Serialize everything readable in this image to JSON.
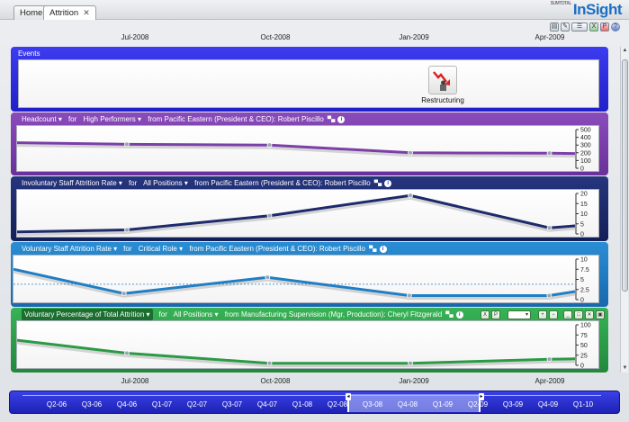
{
  "tabs": [
    {
      "label": "Home",
      "closable": false
    },
    {
      "label": "Attrition",
      "closable": true
    }
  ],
  "logo": {
    "prefix": "SUMTOTAL",
    "text": "InSight"
  },
  "toolbar_icons": [
    "chart-icon",
    "edit-icon",
    "layout-icon",
    "excel-icon",
    "pdf-icon",
    "help-icon"
  ],
  "time_axis": {
    "labels": [
      "Jul-2008",
      "Oct-2008",
      "Jan-2009",
      "Apr-2009"
    ]
  },
  "events": {
    "title": "Events",
    "items": [
      {
        "label": "Restructuring",
        "icon": "restructuring-icon"
      }
    ]
  },
  "panels": [
    {
      "id": "headcount",
      "metric": "Headcount",
      "for": "for",
      "filter": "High Performers",
      "from_text": "from Pacific Eastern (President & CEO): Robert Piscillo",
      "color": "#7b3fa8",
      "ylim": [
        0,
        500
      ],
      "yticks": [
        "500",
        "400",
        "300",
        "200",
        "100",
        "0"
      ]
    },
    {
      "id": "involuntary",
      "metric": "Involuntary Staff Attrition Rate",
      "for": "for",
      "filter": "All Positions",
      "from_text": "from Pacific Eastern (President & CEO): Robert Piscillo",
      "color": "#1d2a6b",
      "ylim": [
        0,
        20
      ],
      "yticks": [
        "20",
        "15",
        "10",
        "5",
        "0"
      ]
    },
    {
      "id": "voluntary",
      "metric": "Voluntary Staff Attrition Rate",
      "for": "for",
      "filter": "Critical Role",
      "from_text": "from Pacific Eastern (President & CEO): Robert Piscillo",
      "color": "#1f7ec4",
      "ylim": [
        0,
        10
      ],
      "yticks": [
        "10",
        "7.5",
        "5",
        "2.5",
        "0"
      ]
    },
    {
      "id": "volpct",
      "metric": "Voluntary Percentage of Total Attrition",
      "for": "for",
      "filter": "All Positions",
      "from_text": "from Manufacturing Supervision (Mgr, Production): Cheryl Fitzgerald",
      "color": "#2a9a45",
      "ylim": [
        0,
        100
      ],
      "yticks": [
        "100",
        "75",
        "50",
        "25",
        "0"
      ]
    }
  ],
  "chart_data": [
    {
      "type": "line",
      "title": "Headcount",
      "x": [
        "May-2008",
        "Jul-2008",
        "Oct-2008",
        "Jan-2009",
        "Apr-2009",
        "May-2009"
      ],
      "values": [
        330,
        310,
        300,
        200,
        195,
        190
      ],
      "ylim": [
        0,
        500
      ]
    },
    {
      "type": "line",
      "title": "Involuntary Staff Attrition Rate",
      "x": [
        "May-2008",
        "Jul-2008",
        "Oct-2008",
        "Jan-2009",
        "Apr-2009",
        "May-2009"
      ],
      "values": [
        1,
        2,
        9,
        19,
        3,
        4
      ],
      "ylim": [
        0,
        20
      ]
    },
    {
      "type": "line",
      "title": "Voluntary Staff Attrition Rate",
      "x": [
        "May-2008",
        "Jul-2008",
        "Oct-2008",
        "Jan-2009",
        "Apr-2009",
        "May-2009"
      ],
      "values": [
        7.5,
        1.5,
        5.5,
        1,
        1,
        2
      ],
      "ylim": [
        0,
        10
      ]
    },
    {
      "type": "line",
      "title": "Voluntary Percentage of Total Attrition",
      "x": [
        "May-2008",
        "Jul-2008",
        "Oct-2008",
        "Jan-2009",
        "Apr-2009",
        "May-2009"
      ],
      "values": [
        62,
        30,
        5,
        5,
        15,
        16
      ],
      "ylim": [
        0,
        100
      ]
    }
  ],
  "timeline": {
    "quarters": [
      "Q2-06",
      "Q3-06",
      "Q4-06",
      "Q1-07",
      "Q2-07",
      "Q3-07",
      "Q4-07",
      "Q1-08",
      "Q2-08",
      "Q3-08",
      "Q4-08",
      "Q1-09",
      "Q2-09",
      "Q3-09",
      "Q4-09",
      "Q1-10"
    ]
  }
}
